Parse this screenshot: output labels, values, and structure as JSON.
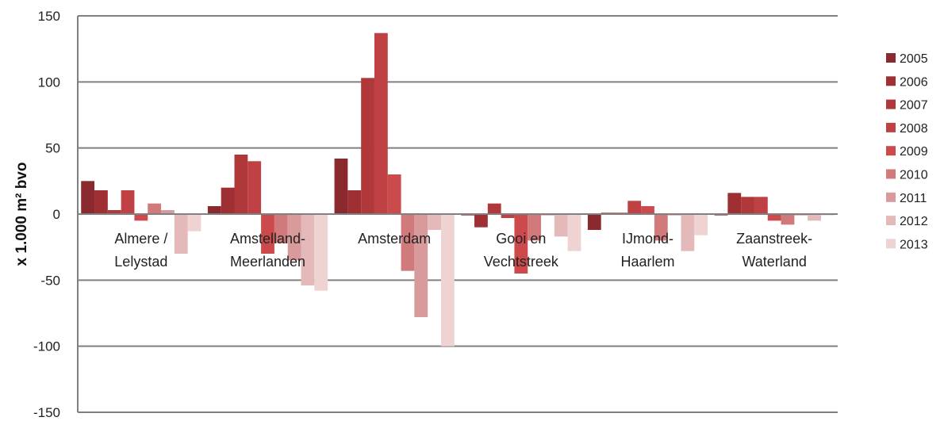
{
  "chart_data": {
    "type": "bar",
    "ylabel": "x 1.000 m² bvo",
    "ylim": [
      -150,
      150
    ],
    "yticks": [
      150,
      100,
      50,
      0,
      -50,
      -100,
      -150
    ],
    "grid": true,
    "legend_position": "right",
    "categories": [
      [
        "Almere /",
        "Lelystad"
      ],
      [
        "Amstelland-",
        "Meerlanden"
      ],
      [
        "Amsterdam"
      ],
      [
        "Gooi en",
        "Vechtstreek"
      ],
      [
        "IJmond-",
        "Haarlem"
      ],
      [
        "Zaanstreek-",
        "Waterland"
      ]
    ],
    "series": [
      {
        "name": "2005",
        "color": "#8b2a2e",
        "values": [
          25,
          6,
          42,
          -1,
          -12,
          -1
        ]
      },
      {
        "name": "2006",
        "color": "#9e3034",
        "values": [
          18,
          20,
          18,
          -10,
          1,
          16
        ]
      },
      {
        "name": "2007",
        "color": "#b0383b",
        "values": [
          3,
          45,
          103,
          8,
          1,
          13
        ]
      },
      {
        "name": "2008",
        "color": "#bf4144",
        "values": [
          18,
          40,
          137,
          -3,
          10,
          13
        ]
      },
      {
        "name": "2009",
        "color": "#cc4a4c",
        "values": [
          -5,
          -30,
          30,
          -45,
          6,
          -5
        ]
      },
      {
        "name": "2010",
        "color": "#d07a7c",
        "values": [
          8,
          -22,
          -43,
          -20,
          -20,
          -8
        ]
      },
      {
        "name": "2011",
        "color": "#d99a9b",
        "values": [
          3,
          -35,
          -78,
          -1,
          -1,
          -1
        ]
      },
      {
        "name": "2012",
        "color": "#e4b9b9",
        "values": [
          -30,
          -54,
          -12,
          -17,
          -28,
          -5
        ]
      },
      {
        "name": "2013",
        "color": "#efd3d3",
        "values": [
          -13,
          -58,
          -100,
          -28,
          -16,
          -1
        ]
      }
    ]
  }
}
